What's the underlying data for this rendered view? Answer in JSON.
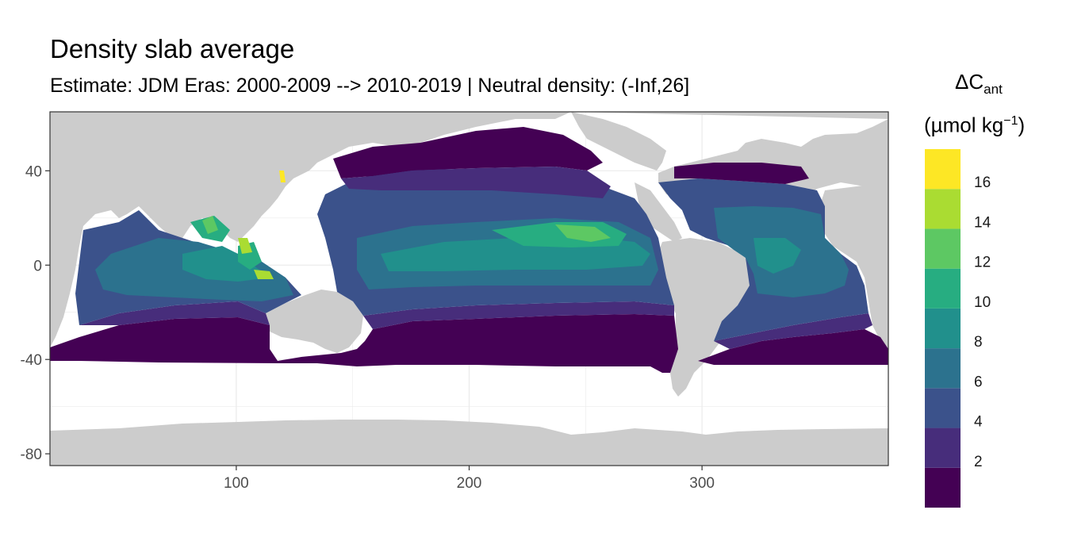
{
  "title": "Density slab average",
  "subtitle": "Estimate: JDM Eras: 2000-2009 --> 2010-2019 | Neutral density: (-Inf,26]",
  "legend": {
    "title_symbol": "ΔC",
    "title_subscript": "ant",
    "unit_open": "(µmol kg",
    "unit_superscript": "−1",
    "unit_close": ")",
    "bins": [
      {
        "from": 0,
        "to": 2,
        "color": "#440154"
      },
      {
        "from": 2,
        "to": 4,
        "color": "#472D7B"
      },
      {
        "from": 4,
        "to": 6,
        "color": "#3B528B"
      },
      {
        "from": 6,
        "to": 8,
        "color": "#2C728E"
      },
      {
        "from": 8,
        "to": 10,
        "color": "#21908C"
      },
      {
        "from": 10,
        "to": 12,
        "color": "#27AD81"
      },
      {
        "from": 12,
        "to": 14,
        "color": "#5DC863"
      },
      {
        "from": 14,
        "to": 16,
        "color": "#AADC32"
      },
      {
        "from": 16,
        "to": 18,
        "color": "#FDE725"
      }
    ],
    "tick_labels": [
      "2",
      "4",
      "6",
      "8",
      "10",
      "12",
      "14",
      "16"
    ]
  },
  "axes": {
    "x": {
      "range": [
        20,
        380
      ],
      "ticks": [
        100,
        200,
        300
      ],
      "tick_labels": [
        "100",
        "200",
        "300"
      ]
    },
    "y": {
      "range": [
        -85,
        65
      ],
      "ticks": [
        40,
        0,
        -40,
        -80
      ],
      "tick_labels": [
        "40",
        "0",
        "-40",
        "-80"
      ]
    }
  },
  "colors": {
    "land": "#CCCCCC",
    "no_data": "#FFFFFF",
    "grid": "#EBEBEB",
    "frame": "#333333"
  }
}
